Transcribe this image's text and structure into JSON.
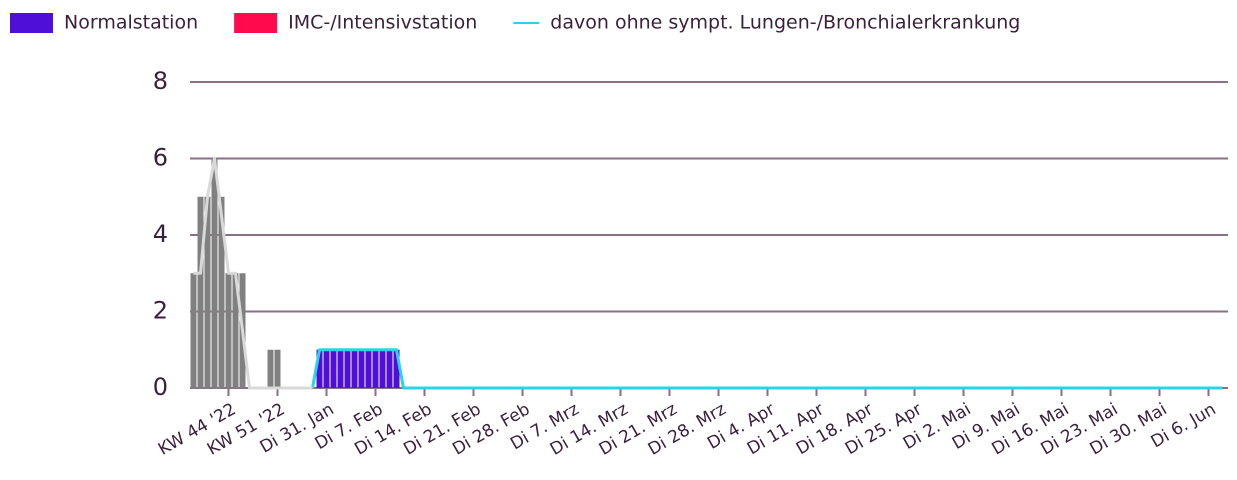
{
  "chart_data": {
    "type": "bar",
    "categories": [
      null,
      null,
      null,
      null,
      null,
      "KW 44 '22",
      null,
      null,
      null,
      null,
      null,
      null,
      "KW 51 '22",
      null,
      null,
      null,
      null,
      null,
      null,
      "Di 31. Jan",
      null,
      null,
      null,
      null,
      null,
      null,
      "Di 7. Feb",
      null,
      null,
      null,
      null,
      null,
      null,
      "Di 14. Feb",
      null,
      null,
      null,
      null,
      null,
      null,
      "Di 21. Feb",
      null,
      null,
      null,
      null,
      null,
      null,
      "Di 28. Feb",
      null,
      null,
      null,
      null,
      null,
      null,
      "Di 7. Mrz",
      null,
      null,
      null,
      null,
      null,
      null,
      "Di 14. Mrz",
      null,
      null,
      null,
      null,
      null,
      null,
      "Di 21. Mrz",
      null,
      null,
      null,
      null,
      null,
      null,
      "Di 28. Mrz",
      null,
      null,
      null,
      null,
      null,
      null,
      "Di 4. Apr",
      null,
      null,
      null,
      null,
      null,
      null,
      "Di 11. Apr",
      null,
      null,
      null,
      null,
      null,
      null,
      "Di 18. Apr",
      null,
      null,
      null,
      null,
      null,
      null,
      "Di 25. Apr",
      null,
      null,
      null,
      null,
      null,
      null,
      "Di 2. Mai",
      null,
      null,
      null,
      null,
      null,
      null,
      "Di 9. Mai",
      null,
      null,
      null,
      null,
      null,
      null,
      "Di 16. Mai",
      null,
      null,
      null,
      null,
      null,
      null,
      "Di 23. Mai",
      null,
      null,
      null,
      null,
      null,
      null,
      "Di 30. Mai",
      null,
      null,
      null,
      null,
      null,
      null,
      "Di 6. Jun",
      null,
      null
    ],
    "series": [
      {
        "name": "Normalstation",
        "type": "bar",
        "color": "#4f0fd8",
        "values": [
          null,
          null,
          null,
          null,
          null,
          null,
          null,
          null,
          null,
          null,
          null,
          null,
          null,
          null,
          null,
          null,
          null,
          null,
          1,
          1,
          1,
          1,
          1,
          1,
          1,
          1,
          1,
          1,
          1,
          1,
          0,
          0,
          0,
          0,
          0,
          0,
          0,
          0,
          0,
          0,
          0,
          0,
          0,
          0,
          0,
          0,
          0,
          0,
          0,
          0,
          0,
          0,
          0,
          0,
          0,
          0,
          0,
          0,
          0,
          0,
          0,
          0,
          0,
          0,
          0,
          0,
          0,
          0,
          0,
          0,
          0,
          0,
          0,
          0,
          0,
          0,
          0,
          0,
          0,
          0,
          0,
          0,
          0,
          0,
          0,
          0,
          0,
          0,
          0,
          0,
          0,
          0,
          0,
          0,
          0,
          0,
          0,
          0,
          0,
          0,
          0,
          0,
          0,
          0,
          0,
          0,
          0,
          0,
          0,
          0,
          0,
          0,
          0,
          0,
          0,
          0,
          0,
          0,
          0,
          0,
          0,
          0,
          0,
          0,
          0,
          0,
          0,
          0,
          0,
          0,
          0,
          0,
          0,
          0,
          0,
          0,
          0,
          0,
          0,
          0,
          0,
          0,
          0,
          0,
          0,
          0,
          0,
          0
        ]
      },
      {
        "name": "IMC-/Intensivstation",
        "type": "bar",
        "color": "#ff0a4d",
        "values": [
          null,
          null,
          null,
          null,
          null,
          null,
          null,
          null,
          null,
          null,
          null,
          null,
          null,
          null,
          null,
          null,
          null,
          null,
          0,
          0,
          0,
          0,
          0,
          0,
          0,
          0,
          0,
          0,
          0,
          0,
          0,
          0,
          0,
          0,
          0,
          0,
          0,
          0,
          0,
          0,
          0,
          0,
          0,
          0,
          0,
          0,
          0,
          0,
          0,
          0,
          0,
          0,
          0,
          0,
          0,
          0,
          0,
          0,
          0,
          0,
          0,
          0,
          0,
          0,
          0,
          0,
          0,
          0,
          0,
          0,
          0,
          0,
          0,
          0,
          0,
          0,
          0,
          0,
          0,
          0,
          0,
          0,
          0,
          0,
          0,
          0,
          0,
          0,
          0,
          0,
          0,
          0,
          0,
          0,
          0,
          0,
          0,
          0,
          0,
          0,
          0,
          0,
          0,
          0,
          0,
          0,
          0,
          0,
          0,
          0,
          0,
          0,
          0,
          0,
          0,
          0,
          0,
          0,
          0,
          0,
          0,
          0,
          0,
          0,
          0,
          0,
          0,
          0,
          0,
          0,
          0,
          0,
          0,
          0,
          0,
          0,
          0,
          0,
          0,
          0,
          0,
          0,
          0,
          0,
          0,
          0,
          0,
          0
        ]
      },
      {
        "name": "davon ohne sympt. Lungen-/Bronchialerkrankung",
        "type": "line",
        "color": "#29d3e8",
        "values": [
          null,
          null,
          null,
          null,
          null,
          null,
          null,
          null,
          null,
          null,
          null,
          null,
          null,
          null,
          null,
          null,
          null,
          0,
          1,
          1,
          1,
          1,
          1,
          1,
          1,
          1,
          1,
          1,
          1,
          1,
          0,
          0,
          0,
          0,
          0,
          0,
          0,
          0,
          0,
          0,
          0,
          0,
          0,
          0,
          0,
          0,
          0,
          0,
          0,
          0,
          0,
          0,
          0,
          0,
          0,
          0,
          0,
          0,
          0,
          0,
          0,
          0,
          0,
          0,
          0,
          0,
          0,
          0,
          0,
          0,
          0,
          0,
          0,
          0,
          0,
          0,
          0,
          0,
          0,
          0,
          0,
          0,
          0,
          0,
          0,
          0,
          0,
          0,
          0,
          0,
          0,
          0,
          0,
          0,
          0,
          0,
          0,
          0,
          0,
          0,
          0,
          0,
          0,
          0,
          0,
          0,
          0,
          0,
          0,
          0,
          0,
          0,
          0,
          0,
          0,
          0,
          0,
          0,
          0,
          0,
          0,
          0,
          0,
          0,
          0,
          0,
          0,
          0,
          0,
          0,
          0,
          0,
          0,
          0,
          0,
          0,
          0,
          0,
          0,
          0,
          0,
          0,
          0,
          0,
          0,
          0,
          0,
          0
        ]
      },
      {
        "type": "bar",
        "color": "#808080",
        "values": [
          3,
          5,
          5,
          6,
          5,
          3,
          3,
          3,
          null,
          null,
          null,
          1,
          1,
          null,
          null,
          null,
          null,
          null,
          null,
          null,
          null,
          null,
          null,
          null,
          null,
          null,
          null,
          null,
          null,
          null,
          null,
          null,
          null,
          null,
          null,
          null,
          null,
          null,
          null,
          null,
          null,
          null,
          null,
          null,
          null,
          null,
          null,
          null,
          null,
          null,
          null,
          null,
          null,
          null,
          null,
          null,
          null,
          null,
          null,
          null,
          null,
          null,
          null,
          null,
          null,
          null,
          null,
          null,
          null,
          null,
          null,
          null,
          null,
          null,
          null,
          null,
          null,
          null,
          null,
          null,
          null,
          null,
          null,
          null,
          null,
          null,
          null,
          null,
          null,
          null,
          null,
          null,
          null,
          null,
          null,
          null,
          null,
          null,
          null,
          null,
          null,
          null,
          null,
          null,
          null,
          null,
          null,
          null,
          null,
          null,
          null,
          null,
          null,
          null,
          null,
          null,
          null,
          null,
          null,
          null,
          null,
          null,
          null,
          null,
          null,
          null,
          null,
          null,
          null,
          null,
          null,
          null,
          null,
          null,
          null,
          null,
          null,
          null,
          null,
          null,
          null,
          null,
          null,
          null,
          null,
          null,
          null,
          null
        ]
      },
      {
        "type": "line",
        "color": "#d9d9d9",
        "values": [
          3,
          3,
          5,
          6,
          4.5,
          3,
          3,
          1.5,
          0,
          0,
          0,
          0,
          0,
          0,
          0,
          0,
          0,
          0,
          null,
          null,
          null,
          null,
          null,
          null,
          null,
          null,
          null,
          null,
          null,
          null,
          null,
          null,
          null,
          null,
          null,
          null,
          null,
          null,
          null,
          null,
          null,
          null,
          null,
          null,
          null,
          null,
          null,
          null,
          null,
          null,
          null,
          null,
          null,
          null,
          null,
          null,
          null,
          null,
          null,
          null,
          null,
          null,
          null,
          null,
          null,
          null,
          null,
          null,
          null,
          null,
          null,
          null,
          null,
          null,
          null,
          null,
          null,
          null,
          null,
          null,
          null,
          null,
          null,
          null,
          null,
          null,
          null,
          null,
          null,
          null,
          null,
          null,
          null,
          null,
          null,
          null,
          null,
          null,
          null,
          null,
          null,
          null,
          null,
          null,
          null,
          null,
          null,
          null,
          null,
          null,
          null,
          null,
          null,
          null,
          null,
          null,
          null,
          null,
          null,
          null,
          null,
          null,
          null,
          null,
          null,
          null,
          null,
          null,
          null,
          null,
          null,
          null,
          null,
          null,
          null,
          null,
          null,
          null,
          null,
          null,
          null,
          null,
          null,
          null,
          null,
          null,
          null,
          null
        ]
      }
    ],
    "ylim": [
      0,
      8
    ],
    "yticks": [
      0,
      2,
      4,
      6,
      8
    ],
    "grid": true,
    "legend": "top"
  }
}
